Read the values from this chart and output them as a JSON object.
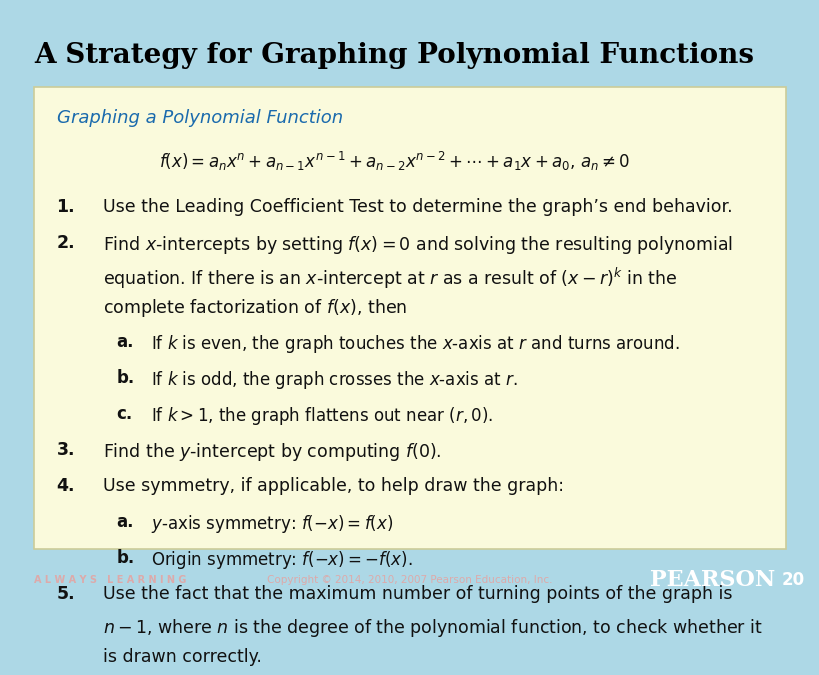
{
  "title": "A Strategy for Graphing Polynomial Functions",
  "title_color": "#000000",
  "title_bg": "#add8e6",
  "content_bg": "#fafadc",
  "header_text": "Graphing a Polynomial Function",
  "header_color": "#1a6aad",
  "footer_bg": "#aa0000",
  "footer_left": "A L W A Y S   L E A R N I N G",
  "footer_center": "Copyright © 2014, 2010, 2007 Pearson Education, Inc.",
  "footer_right": "PEARSON",
  "footer_page": "20",
  "formula": "$f(x) = a_nx^n + a_{n-1}x^{n-1} + a_{n-2}x^{n-2} + \\cdots + a_1x + a_0,\\, a_n \\neq 0$",
  "items": [
    {
      "num": "1.",
      "text": "Use the Leading Coefficient Test to determine the graph’s end behavior.",
      "indent": 0
    },
    {
      "num": "2.",
      "text": "Find $x$-intercepts by setting $f(x) = 0$ and solving the resulting polynomial\nequation. If there is an $x$-intercept at $r$ as a result of $(x - r)^k$ in the\ncomplete factorization of $f(x)$, then",
      "indent": 0
    },
    {
      "num": "a.",
      "text": "If $k$ is even, the graph touches the $x$-axis at $r$ and turns around.",
      "indent": 1
    },
    {
      "num": "b.",
      "text": "If $k$ is odd, the graph crosses the $x$-axis at $r$.",
      "indent": 1
    },
    {
      "num": "c.",
      "text": "If $k > 1$, the graph flattens out near $(r, 0)$.",
      "indent": 1
    },
    {
      "num": "3.",
      "text": "Find the $y$-intercept by computing $f(0)$.",
      "indent": 0
    },
    {
      "num": "4.",
      "text": "Use symmetry, if applicable, to help draw the graph:",
      "indent": 0
    },
    {
      "num": "a.",
      "text": "$y$-axis symmetry: $f(-x) = f(x)$",
      "indent": 1
    },
    {
      "num": "b.",
      "text": "Origin symmetry: $f(-x) = -f(x)$.",
      "indent": 1
    },
    {
      "num": "5.",
      "text": "Use the fact that the maximum number of turning points of the graph is\n$n - 1$, where $n$ is the degree of the polynomial function, to check whether it\nis drawn correctly.",
      "indent": 0
    }
  ]
}
